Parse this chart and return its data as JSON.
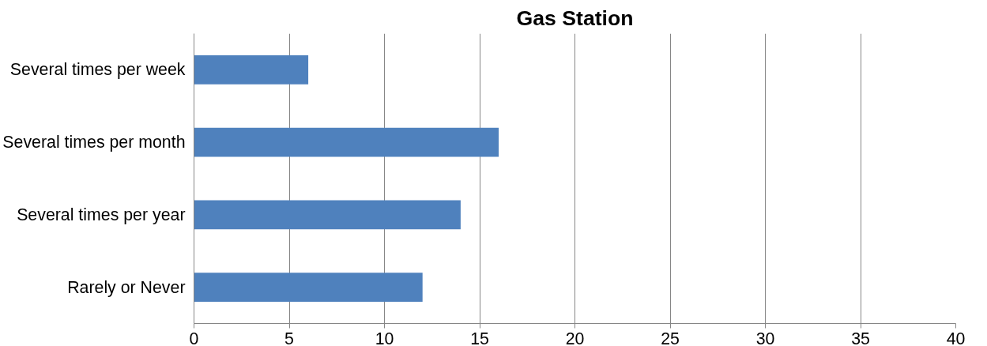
{
  "chart_data": {
    "type": "bar",
    "title": "Gas Station",
    "orientation": "horizontal",
    "categories": [
      "Several times per week",
      "Several times per month",
      "Several times per year",
      "Rarely or Never"
    ],
    "values": [
      6,
      16,
      14,
      12
    ],
    "color": "#4f81bd",
    "xlim": [
      0,
      40
    ],
    "xticks": [
      0,
      5,
      10,
      15,
      20,
      25,
      30,
      35,
      40
    ],
    "grid": "x"
  }
}
